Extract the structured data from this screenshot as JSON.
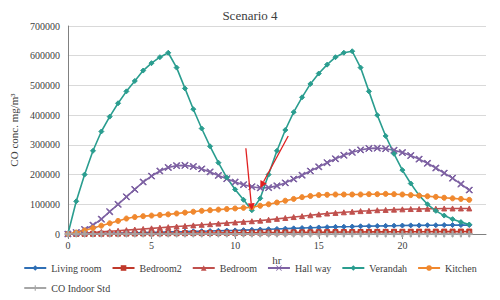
{
  "chart_data": {
    "type": "line",
    "title": "Scenario 4",
    "x_label": "hr",
    "y_label": "CO conc. mg/m³",
    "x": [
      0,
      0.5,
      1,
      1.5,
      2,
      2.5,
      3,
      3.5,
      4,
      4.5,
      5,
      5.5,
      6,
      6.5,
      7,
      7.5,
      8,
      8.5,
      9,
      9.5,
      10,
      10.5,
      11,
      11.5,
      12,
      12.5,
      13,
      13.5,
      14,
      14.5,
      15,
      15.5,
      16,
      16.5,
      17,
      17.5,
      18,
      18.5,
      19,
      19.5,
      20,
      20.5,
      21,
      21.5,
      22,
      22.5,
      23,
      23.5,
      24
    ],
    "xlim": [
      0,
      25
    ],
    "xticks": [
      0,
      5,
      10,
      15,
      20
    ],
    "ylim": [
      0,
      700000
    ],
    "yticks": [
      0,
      100000,
      200000,
      300000,
      400000,
      500000,
      600000,
      700000
    ],
    "grid": true,
    "legend": "bottom",
    "series": [
      {
        "name": "Living room",
        "color": "#2f6fb5",
        "marker": "diamond",
        "values": [
          0,
          500,
          1000,
          1500,
          2000,
          2500,
          3000,
          3500,
          4000,
          5000,
          5500,
          6000,
          7000,
          7500,
          8000,
          9000,
          9500,
          10000,
          11000,
          11500,
          12000,
          13000,
          14000,
          15000,
          16000,
          17000,
          18000,
          19000,
          20000,
          21000,
          22000,
          23000,
          24000,
          24500,
          25000,
          26000,
          26500,
          27000,
          27500,
          28000,
          28500,
          29000,
          29000,
          29500,
          29500,
          30000,
          30000,
          30000,
          30000
        ]
      },
      {
        "name": "Bedroom2",
        "color": "#c0392b",
        "marker": "square",
        "values": [
          0,
          200,
          400,
          600,
          800,
          1000,
          1200,
          1400,
          1600,
          1800,
          2000,
          2200,
          2400,
          2600,
          2800,
          3000,
          3200,
          3400,
          3600,
          3800,
          4000,
          4200,
          4400,
          4600,
          4800,
          5000,
          5200,
          5400,
          5600,
          5800,
          6000,
          6200,
          6400,
          6500,
          6600,
          6800,
          7000,
          7100,
          7200,
          7400,
          7500,
          7600,
          7700,
          7800,
          7900,
          8000,
          8000,
          8100,
          8200
        ]
      },
      {
        "name": "Bedroom",
        "color": "#c0504d",
        "marker": "triangle",
        "values": [
          0,
          1000,
          3000,
          5000,
          7000,
          9000,
          11000,
          13000,
          15000,
          17000,
          19000,
          21000,
          23000,
          25000,
          27000,
          29000,
          31000,
          33000,
          35000,
          37000,
          39000,
          41000,
          43000,
          45000,
          48000,
          51000,
          54000,
          57000,
          60000,
          63000,
          66000,
          69000,
          71000,
          73000,
          75000,
          77000,
          78000,
          80000,
          81000,
          82000,
          83000,
          84000,
          84000,
          85000,
          85000,
          86000,
          86000,
          86000,
          86000
        ]
      },
      {
        "name": "Hall way",
        "color": "#7e62a3",
        "marker": "x",
        "values": [
          0,
          5000,
          15000,
          30000,
          50000,
          75000,
          100000,
          125000,
          150000,
          175000,
          195000,
          212000,
          224000,
          230000,
          231000,
          227000,
          219000,
          209000,
          197000,
          186000,
          175000,
          166000,
          159000,
          155000,
          156000,
          162000,
          172000,
          185000,
          198000,
          212000,
          226000,
          240000,
          253000,
          265000,
          275000,
          283000,
          288000,
          289000,
          287000,
          282000,
          274000,
          264000,
          252000,
          238000,
          222000,
          205000,
          188000,
          168000,
          148000
        ]
      },
      {
        "name": "Verandah",
        "color": "#2a9d8f",
        "marker": "diamond",
        "values": [
          0,
          110000,
          200000,
          280000,
          345000,
          395000,
          440000,
          480000,
          515000,
          550000,
          575000,
          595000,
          610000,
          560000,
          490000,
          420000,
          355000,
          295000,
          240000,
          190000,
          150000,
          115000,
          80000,
          120000,
          200000,
          280000,
          350000,
          410000,
          460000,
          505000,
          540000,
          570000,
          595000,
          610000,
          615000,
          560000,
          480000,
          400000,
          330000,
          270000,
          215000,
          170000,
          130000,
          100000,
          78000,
          62000,
          50000,
          40000,
          32000
        ]
      },
      {
        "name": "Kitchen",
        "color": "#f0882e",
        "marker": "circle",
        "values": [
          0,
          5000,
          12000,
          20000,
          28000,
          36000,
          44000,
          52000,
          57000,
          60000,
          62000,
          64000,
          66000,
          69000,
          72000,
          75000,
          78000,
          80000,
          82000,
          84000,
          86000,
          88000,
          90000,
          95000,
          100000,
          106000,
          112000,
          118000,
          124000,
          128000,
          131000,
          132000,
          133000,
          133000,
          133000,
          133000,
          134000,
          134000,
          135000,
          134000,
          133000,
          131000,
          129000,
          127000,
          125000,
          122000,
          120000,
          118000,
          115000
        ]
      },
      {
        "name": "CO Indoor Std",
        "color": "#a6a6a6",
        "marker": "plus",
        "values": [
          10,
          10,
          10,
          10,
          10,
          10,
          10,
          10,
          10,
          10,
          10,
          10,
          10,
          10,
          10,
          10,
          10,
          10,
          10,
          10,
          10,
          10,
          10,
          10,
          10,
          10,
          10,
          10,
          10,
          10,
          10,
          10,
          10,
          10,
          10,
          10,
          10,
          10,
          10,
          10,
          10,
          10,
          10,
          10,
          10,
          10,
          10,
          10,
          10
        ]
      }
    ]
  }
}
